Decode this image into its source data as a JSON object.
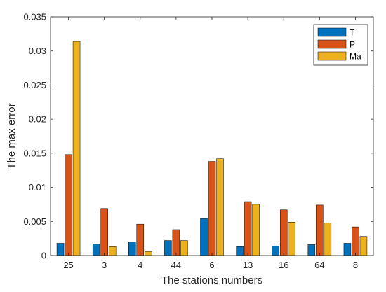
{
  "chart_data": {
    "type": "bar",
    "categories": [
      "25",
      "3",
      "4",
      "44",
      "6",
      "13",
      "16",
      "64",
      "8"
    ],
    "series": [
      {
        "name": "T",
        "color": "#0072BD",
        "values": [
          0.0018,
          0.0017,
          0.002,
          0.0022,
          0.0054,
          0.0013,
          0.0014,
          0.0016,
          0.0018
        ]
      },
      {
        "name": "P",
        "color": "#D95319",
        "values": [
          0.0148,
          0.0069,
          0.0046,
          0.0038,
          0.0138,
          0.0079,
          0.0067,
          0.0074,
          0.0042
        ]
      },
      {
        "name": "Ma",
        "color": "#EDB120",
        "values": [
          0.0314,
          0.0013,
          0.0006,
          0.0022,
          0.0142,
          0.0075,
          0.0049,
          0.0048,
          0.0028
        ]
      }
    ],
    "xlabel": "The stations numbers",
    "ylabel": "The max error",
    "ylim": [
      0,
      0.035
    ],
    "yticks": [
      0,
      0.005,
      0.01,
      0.015,
      0.02,
      0.025,
      0.03,
      0.035
    ],
    "ytick_labels": [
      "0",
      "0.005",
      "0.01",
      "0.015",
      "0.02",
      "0.025",
      "0.03",
      "0.035"
    ],
    "grid": false,
    "legend_position": "top-right"
  }
}
